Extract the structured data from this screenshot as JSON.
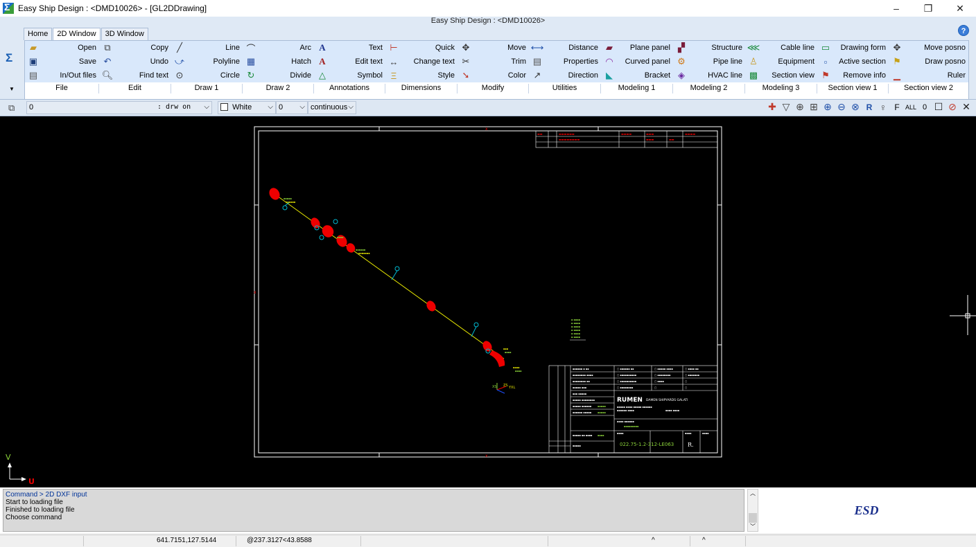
{
  "window": {
    "title": "Easy Ship Design : <DMD10026> - [GL2DDrawing]",
    "minimize": "–",
    "restore": "❐",
    "close": "✕"
  },
  "ribbon_caption": "Easy Ship Design : <DMD10026>",
  "help": "?",
  "tabs": [
    "Home",
    "2D Window",
    "3D Window"
  ],
  "active_tab": "2D Window",
  "ribbon": {
    "file": {
      "group": "File",
      "items": [
        "Open",
        "Save",
        "In/Out files"
      ]
    },
    "edit": {
      "group": "Edit",
      "items": [
        "Copy",
        "Undo",
        "Find text"
      ]
    },
    "draw1": {
      "group": "Draw 1",
      "items": [
        "Line",
        "Polyline",
        "Circle"
      ]
    },
    "draw2": {
      "group": "Draw 2",
      "items": [
        "Arc",
        "Hatch",
        "Divide"
      ]
    },
    "annotations": {
      "group": "Annotations",
      "items": [
        "Text",
        "Edit text",
        "Symbol"
      ]
    },
    "dimensions": {
      "group": "Dimensions",
      "items": [
        "Quick",
        "Change text",
        "Style"
      ]
    },
    "modify": {
      "group": "Modify",
      "items": [
        "Move",
        "Trim",
        "Color"
      ]
    },
    "utilities": {
      "group": "Utilities",
      "items": [
        "Distance",
        "Properties",
        "Direction"
      ]
    },
    "modeling1": {
      "group": "Modeling 1",
      "items": [
        "Plane panel",
        "Curved panel",
        "Bracket"
      ]
    },
    "modeling2": {
      "group": "Modeling 2",
      "items": [
        "Structure",
        "Pipe line",
        "HVAC line"
      ]
    },
    "modeling3": {
      "group": "Modeling 3",
      "items": [
        "Cable line",
        "Equipment",
        "Section view"
      ]
    },
    "section1": {
      "group": "Section view 1",
      "items": [
        "Drawing form",
        "Active section",
        "Remove info"
      ]
    },
    "section2": {
      "group": "Section view 2",
      "items": [
        "Move posno",
        "Draw posno",
        "Ruler"
      ]
    }
  },
  "toolbar2": {
    "layer_value": "0",
    "layer_suffix": ": drw on",
    "color_value": "White",
    "lineweight_value": "0",
    "linetype_value": "continuous",
    "right_icons": [
      "pick-icon",
      "filter-icon",
      "zoom-extents-icon",
      "zoom-window-icon",
      "zoom-in-icon",
      "zoom-out-icon",
      "zoom-previous-icon",
      "redraw-icon",
      "hint-icon",
      "F",
      "ALL",
      "0",
      "frame-icon",
      "stop-icon",
      "close-icon"
    ],
    "icon_F": "F",
    "icon_ALL": "ALL",
    "icon_0": "0"
  },
  "canvas": {
    "axis_v": "V",
    "axis_u": "U",
    "drawing_number": "022.75-1.2-312-LE063",
    "title_brand": "DAMEN SHIPYARDS GALATI",
    "title_brand_mark": "RUMEN",
    "revision": "R."
  },
  "command_log": [
    "Command > 2D DXF input",
    "Start to loading file",
    "Finished to loading file",
    "Choose command"
  ],
  "esd_logo": "ESD",
  "status": {
    "coords": "641.7151,127.5144",
    "polar": "@237.3127<43.8588",
    "arrow1": "^",
    "arrow2": "^"
  }
}
